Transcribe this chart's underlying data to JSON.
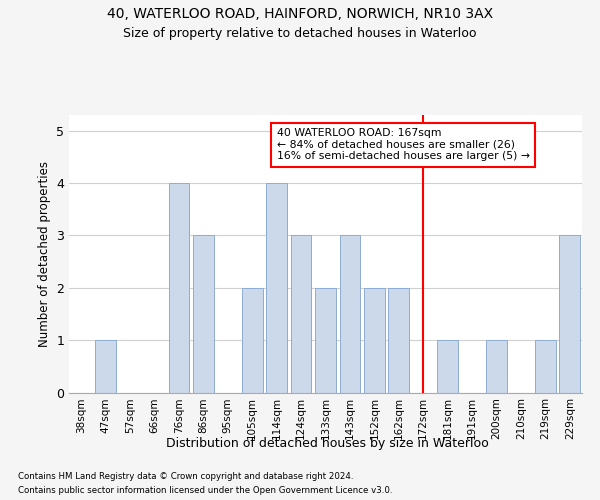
{
  "title1": "40, WATERLOO ROAD, HAINFORD, NORWICH, NR10 3AX",
  "title2": "Size of property relative to detached houses in Waterloo",
  "xlabel": "Distribution of detached houses by size in Waterloo",
  "ylabel": "Number of detached properties",
  "categories": [
    "38sqm",
    "47sqm",
    "57sqm",
    "66sqm",
    "76sqm",
    "86sqm",
    "95sqm",
    "105sqm",
    "114sqm",
    "124sqm",
    "133sqm",
    "143sqm",
    "152sqm",
    "162sqm",
    "172sqm",
    "181sqm",
    "191sqm",
    "200sqm",
    "210sqm",
    "219sqm",
    "229sqm"
  ],
  "values": [
    0,
    1,
    0,
    0,
    4,
    3,
    0,
    2,
    4,
    3,
    2,
    3,
    2,
    2,
    0,
    1,
    0,
    1,
    0,
    1,
    3
  ],
  "bar_color": "#ccd9ea",
  "bar_edge_color": "#8eadd4",
  "red_line_index": 14,
  "annotation_title": "40 WATERLOO ROAD: 167sqm",
  "annotation_line1": "← 84% of detached houses are smaller (26)",
  "annotation_line2": "16% of semi-detached houses are larger (5) →",
  "footer1": "Contains HM Land Registry data © Crown copyright and database right 2024.",
  "footer2": "Contains public sector information licensed under the Open Government Licence v3.0.",
  "ylim": [
    0,
    5.3
  ],
  "yticks": [
    0,
    1,
    2,
    3,
    4,
    5
  ],
  "bg_color": "#f5f5f5",
  "plot_bg_color": "#ffffff",
  "grid_color": "#d0d0d0"
}
